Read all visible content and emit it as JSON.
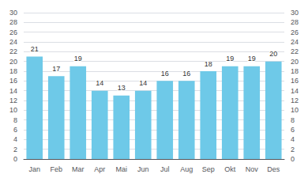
{
  "chart_data": {
    "type": "bar",
    "categories": [
      "Jan",
      "Feb",
      "Mar",
      "Apr",
      "Mai",
      "Jun",
      "Jul",
      "Aug",
      "Sep",
      "Okt",
      "Nov",
      "Des"
    ],
    "values": [
      21,
      17,
      19,
      14,
      13,
      14,
      16,
      16,
      18,
      19,
      19,
      20
    ],
    "color": "#6EC9E8",
    "ylim": [
      0,
      30
    ],
    "yticks": [
      0,
      2,
      4,
      6,
      8,
      10,
      12,
      14,
      16,
      18,
      20,
      22,
      24,
      26,
      28,
      30
    ],
    "y2lim": [
      0,
      30
    ],
    "y2ticks": [
      0,
      2,
      4,
      6,
      8,
      10,
      12,
      14,
      16,
      18,
      20,
      22,
      24,
      26,
      28,
      30
    ],
    "grid": true,
    "data_labels": true
  }
}
